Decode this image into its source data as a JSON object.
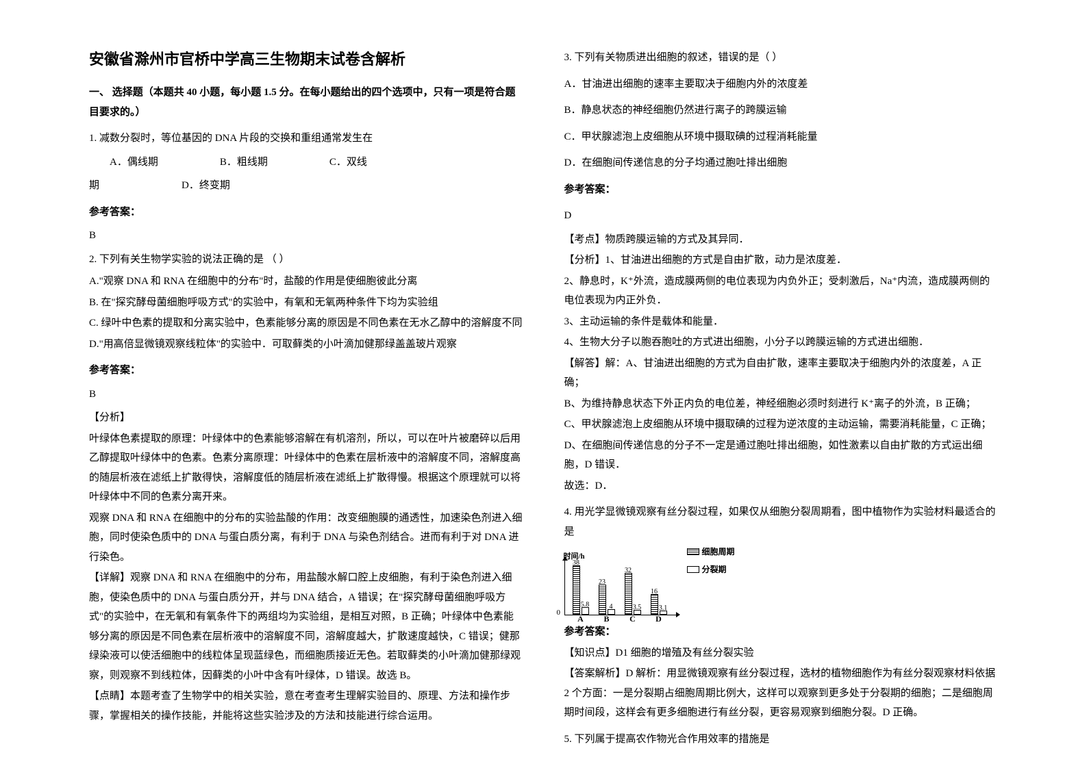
{
  "title": "安徽省滁州市官桥中学高三生物期末试卷含解析",
  "section1_header": "一、 选择题（本题共 40 小题，每小题 1.5 分。在每小题给出的四个选项中，只有一项是符合题目要求的。）",
  "q1": {
    "text": "1. 减数分裂时，等位基因的 DNA 片段的交换和重组通常发生在",
    "optA": "A．偶线期",
    "optB": "B．粗线期",
    "optC": "C．双线",
    "optCb": "期",
    "optD": "D．终变期",
    "answer_label": "参考答案：",
    "answer": "B"
  },
  "q2": {
    "text": "2. 下列有关生物学实验的说法正确的是          （       ）",
    "optA": "A.\"观察 DNA 和 RNA 在细胞中的分布\"时，盐酸的作用是使细胞彼此分离",
    "optB": "B. 在\"探究酵母菌细胞呼吸方式\"的实验中，有氧和无氧两种条件下均为实验组",
    "optC": "C. 绿叶中色素的提取和分离实验中，色素能够分离的原因是不同色素在无水乙醇中的溶解度不同",
    "optD": "D.\"用高倍显微镜观察线粒体\"的实验中．可取藓类的小叶滴加健那绿盖盖玻片观察",
    "answer_label": "参考答案：",
    "answer": "B",
    "analysis_label": "分析",
    "analysis_p1": "叶绿体色素提取的原理：叶绿体中的色素能够溶解在有机溶剂，所以，可以在叶片被磨碎以后用乙醇提取叶绿体中的色素。色素分离原理：叶绿体中的色素在层析液中的溶解度不同，溶解度高的随层析液在滤纸上扩散得快，溶解度低的随层析液在滤纸上扩散得慢。根据这个原理就可以将叶绿体中不同的色素分离开来。",
    "analysis_p2": "观察 DNA 和 RNA 在细胞中的分布的实验盐酸的作用：改变细胞膜的通透性，加速染色剂进入细胞，同时使染色质中的 DNA 与蛋白质分离，有利于 DNA 与染色剂结合。进而有利于对 DNA 进行染色。",
    "detail_label": "详解",
    "detail_p1": "观察 DNA 和 RNA 在细胞中的分布，用盐酸水解口腔上皮细胞，有利于染色剂进入细胞，使染色质中的 DNA 与蛋白质分开，并与 DNA 结合，A 错误；在\"探究酵母菌细胞呼吸方式\"的实验中，在无氧和有氧条件下的两组均为实验组，是相互对照，B 正确；叶绿体中色素能够分离的原因是不同色素在层析液中的溶解度不同，溶解度越大，扩散速度越快，C 错误；健那绿染液可以使活细胞中的线粒体呈现蓝绿色，而细胞质接近无色。若取藓类的小叶滴加健那绿观察，则观察不到线粒体，因藓类的小叶中含有叶绿体，D 错误。故选 B。",
    "point_label": "点睛",
    "point_p1": "本题考查了生物学中的相关实验，意在考查考生理解实验目的、原理、方法和操作步骤，掌握相关的操作技能，并能将这些实验涉及的方法和技能进行综合运用。"
  },
  "q3": {
    "text": "3. 下列有关物质进出细胞的叙述，错误的是（     ）",
    "optA": "A．甘油进出细胞的速率主要取决于细胞内外的浓度差",
    "optB": "B．静息状态的神经细胞仍然进行离子的跨膜运输",
    "optC": "C．甲状腺滤泡上皮细胞从环境中摄取碘的过程消耗能量",
    "optD": "D．在细胞间传递信息的分子均通过胞吐排出细胞",
    "answer_label": "参考答案：",
    "answer": "D",
    "kd_label": "考点",
    "kd": "物质跨膜运输的方式及其异同．",
    "fx_label": "分析",
    "fx1": "1、甘油进出细胞的方式是自由扩散，动力是浓度差．",
    "fx2": "2、静息时，K⁺外流，造成膜两侧的电位表现为内负外正；受刺激后，Na⁺内流，造成膜两侧的电位表现为内正外负．",
    "fx3": "3、主动运输的条件是载体和能量．",
    "fx4": "4、生物大分子以胞吞胞吐的方式进出细胞，小分子以跨膜运输的方式进出细胞．",
    "jd_label": "解答",
    "jd1": "解：A、甘油进出细胞的方式为自由扩散，速率主要取决于细胞内外的浓度差，A 正确；",
    "jd2": "B、为维持静息状态下外正内负的电位差，神经细胞必须时刻进行 K⁺离子的外流，B 正确；",
    "jd3": "C、甲状腺滤泡上皮细胞从环境中摄取碘的过程为逆浓度的主动运输，需要消耗能量，C 正确；",
    "jd4": "D、在细胞间传递信息的分子不一定是通过胞吐排出细胞，如性激素以自由扩散的方式运出细胞，D 错误．",
    "conclusion": "故选：D．"
  },
  "q4": {
    "text": "4. 用光学显微镜观察有丝分裂过程，如果仅从细胞分裂周期看，图中植物作为实验材料最适合的是",
    "chart": {
      "ylabel": "时间/h",
      "ymax": 38,
      "groups": [
        {
          "label": "A",
          "v1": 38,
          "v2": 5.8
        },
        {
          "label": "B",
          "v1": 23,
          "v2": 4
        },
        {
          "label": "C",
          "v1": 32,
          "v2": 3.5
        },
        {
          "label": "D",
          "v1": 16,
          "v2": 3.1
        }
      ],
      "legend1": "细胞周期",
      "legend2": "分裂期",
      "bar_colors": {
        "striped": "#000000",
        "empty": "#ffffff"
      },
      "axis_color": "#000000"
    },
    "answer_label": "参考答案：",
    "kp_label": "知识点",
    "kp": "D1    细胞的增殖及有丝分裂实验",
    "exp_label": "答案解析",
    "exp": "D 解析：用显微镜观察有丝分裂过程，选材的植物细胞作为有丝分裂观察材料依据 2 个方面：一是分裂期占细胞周期比例大，这样可以观察到更多处于分裂期的细胞；二是细胞周期时间段，这样会有更多细胞进行有丝分裂，更容易观察到细胞分裂。D 正确。"
  },
  "q5": {
    "text": "5. 下列属于提高农作物光合作用效率的措施是"
  }
}
